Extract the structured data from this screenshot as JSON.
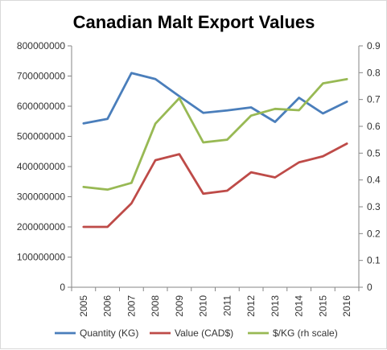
{
  "chart_data": {
    "type": "line",
    "title": "Canadian Malt Export Values",
    "categories": [
      "2005",
      "2006",
      "2007",
      "2008",
      "2009",
      "2010",
      "2011",
      "2012",
      "2013",
      "2014",
      "2015",
      "2016"
    ],
    "y_left": {
      "min": 0,
      "max": 800000000,
      "step": 100000000,
      "tick_labels": [
        "0",
        "100000000",
        "200000000",
        "300000000",
        "400000000",
        "500000000",
        "600000000",
        "700000000",
        "800000000"
      ]
    },
    "y_right": {
      "min": 0,
      "max": 0.9,
      "step": 0.1,
      "tick_labels": [
        "0",
        "0.1",
        "0.2",
        "0.3",
        "0.4",
        "0.5",
        "0.6",
        "0.7",
        "0.8",
        "0.9"
      ]
    },
    "grid": false,
    "legend_position": "bottom",
    "series": [
      {
        "name": "Quantity (KG)",
        "axis": "left",
        "color": "#4a7ebb",
        "values": [
          543000000,
          558000000,
          710000000,
          690000000,
          633000000,
          578000000,
          586000000,
          596000000,
          548000000,
          628000000,
          576000000,
          615000000
        ]
      },
      {
        "name": "Value (CAD$)",
        "axis": "left",
        "color": "#be4b48",
        "values": [
          200000000,
          200000000,
          278000000,
          421000000,
          441000000,
          310000000,
          320000000,
          381000000,
          364000000,
          414000000,
          434000000,
          476000000
        ]
      },
      {
        "name": "$/KG (rh scale)",
        "axis": "right",
        "color": "#98b954",
        "values": [
          0.374,
          0.364,
          0.389,
          0.61,
          0.705,
          0.54,
          0.55,
          0.64,
          0.665,
          0.66,
          0.76,
          0.776
        ]
      }
    ]
  }
}
